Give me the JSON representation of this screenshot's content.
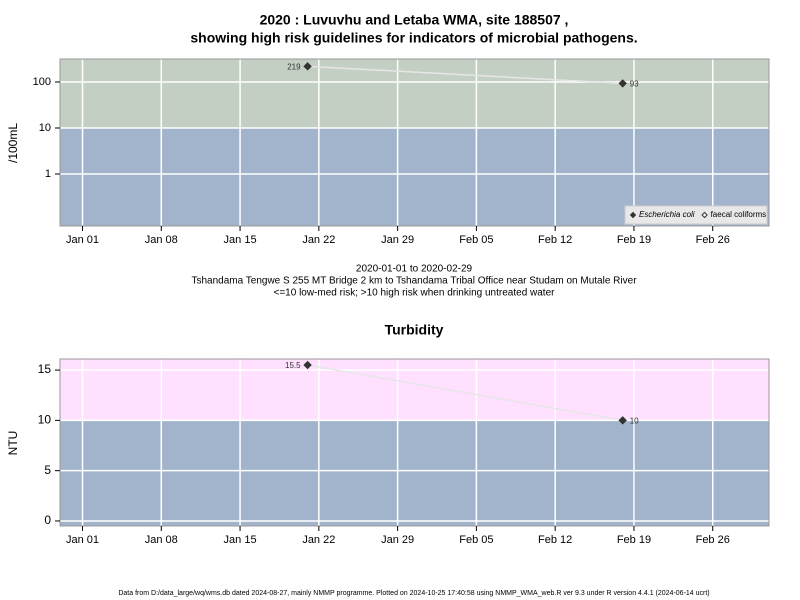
{
  "chart_data": [
    {
      "type": "scatter",
      "title": "2020 : Luvuvhu and Letaba WMA, site 188507 ,",
      "subtitle": "showing high risk guidelines for indicators of microbial pathogens.",
      "ylabel": "/100mL",
      "log_y": true,
      "x": [
        "2020-01-21",
        "2020-02-18"
      ],
      "series": [
        {
          "name": "Escherichia coli",
          "color": "#333333",
          "marker": "filled-diamond",
          "values": [
            219,
            93
          ]
        },
        {
          "name": "faecal coliforms",
          "color": "#333333",
          "marker": "open-diamond",
          "values": [
            null,
            null
          ]
        }
      ],
      "xlim": [
        "2019-12-30",
        "2020-03-02"
      ],
      "xticks": [
        {
          "value": "2020-01-01",
          "label": "Jan 01"
        },
        {
          "value": "2020-01-08",
          "label": "Jan 08"
        },
        {
          "value": "2020-01-15",
          "label": "Jan 15"
        },
        {
          "value": "2020-01-22",
          "label": "Jan 22"
        },
        {
          "value": "2020-01-29",
          "label": "Jan 29"
        },
        {
          "value": "2020-02-05",
          "label": "Feb 05"
        },
        {
          "value": "2020-02-12",
          "label": "Feb 12"
        },
        {
          "value": "2020-02-19",
          "label": "Feb 19"
        },
        {
          "value": "2020-02-26",
          "label": "Feb 26"
        }
      ],
      "ylim": [
        0.074,
        316
      ],
      "yticks": [
        1,
        10,
        100
      ],
      "threshold": 10,
      "high_color": "#c3cfc3",
      "low_color": "#a2b4cc",
      "grid": true,
      "legend": "bottom-right",
      "notes": [
        "2020-01-01 to 2020-02-29",
        "Tshandama Tengwe S 255 MT Bridge 2 km to Tshandama Tribal Office near Studam on Mutale River",
        "<=10 low-med risk; >10 high risk when drinking untreated water"
      ]
    },
    {
      "type": "scatter",
      "title": "Turbidity",
      "ylabel": "NTU",
      "log_y": false,
      "x": [
        "2020-01-21",
        "2020-02-18"
      ],
      "series": [
        {
          "name": "Turbidity",
          "color": "#333333",
          "marker": "filled-diamond",
          "values": [
            15.5,
            10
          ]
        }
      ],
      "xlim": [
        "2019-12-30",
        "2020-03-02"
      ],
      "xticks": [
        {
          "value": "2020-01-01",
          "label": "Jan 01"
        },
        {
          "value": "2020-01-08",
          "label": "Jan 08"
        },
        {
          "value": "2020-01-15",
          "label": "Jan 15"
        },
        {
          "value": "2020-01-22",
          "label": "Jan 22"
        },
        {
          "value": "2020-01-29",
          "label": "Jan 29"
        },
        {
          "value": "2020-02-05",
          "label": "Feb 05"
        },
        {
          "value": "2020-02-12",
          "label": "Feb 12"
        },
        {
          "value": "2020-02-19",
          "label": "Feb 19"
        },
        {
          "value": "2020-02-26",
          "label": "Feb 26"
        }
      ],
      "ylim": [
        -0.5,
        16.1
      ],
      "yticks": [
        0,
        5,
        10,
        15
      ],
      "threshold": 10,
      "high_color": "#ffe0ff",
      "low_color": "#a2b4cc",
      "grid": true
    }
  ],
  "footer": "Data from D:/data_large/wq/wms.db dated 2024-08-27, mainly NMMP programme. Plotted on 2024-10-25 17:40:58 using NMMP_WMA_web.R ver 9.3 under R version 4.4.1 (2024-06-14 ucrt)"
}
